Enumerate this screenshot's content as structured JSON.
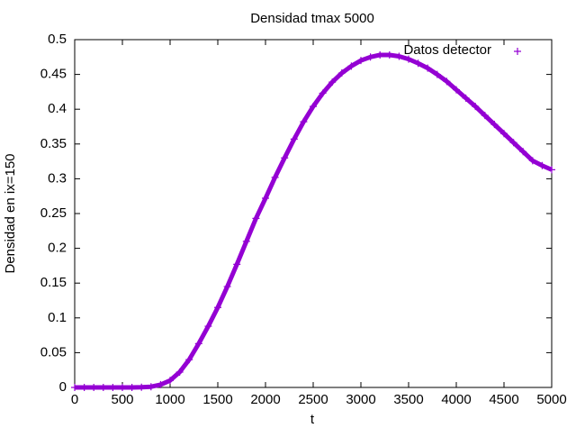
{
  "chart_data": {
    "type": "scatter",
    "title": "Densidad tmax 5000",
    "x_label": "t",
    "y_label": "Densidad en ix=150",
    "series": [
      {
        "name": "Datos detector",
        "color": "#9400d3",
        "x": [
          0,
          100,
          200,
          300,
          400,
          500,
          600,
          700,
          800,
          900,
          1000,
          1100,
          1200,
          1300,
          1400,
          1500,
          1600,
          1700,
          1800,
          1900,
          2000,
          2100,
          2200,
          2300,
          2400,
          2500,
          2600,
          2700,
          2800,
          2900,
          3000,
          3100,
          3200,
          3300,
          3400,
          3500,
          3600,
          3700,
          3800,
          3900,
          4000,
          4100,
          4200,
          4300,
          4400,
          4500,
          4600,
          4700,
          4800,
          4900,
          5000
        ],
        "values": [
          0,
          0,
          0,
          0,
          0,
          0,
          0,
          0.0003,
          0.001,
          0.004,
          0.01,
          0.022,
          0.04,
          0.063,
          0.088,
          0.115,
          0.145,
          0.177,
          0.21,
          0.243,
          0.272,
          0.302,
          0.33,
          0.357,
          0.382,
          0.404,
          0.423,
          0.439,
          0.452,
          0.462,
          0.47,
          0.475,
          0.478,
          0.478,
          0.476,
          0.472,
          0.466,
          0.459,
          0.45,
          0.44,
          0.428,
          0.416,
          0.404,
          0.391,
          0.378,
          0.365,
          0.352,
          0.339,
          0.326,
          0.319,
          0.313
        ]
      }
    ],
    "xlim": [
      0,
      5000
    ],
    "xticks": [
      0,
      500,
      1000,
      1500,
      2000,
      2500,
      3000,
      3500,
      4000,
      4500,
      5000
    ],
    "ylim": [
      0,
      0.5
    ],
    "yticks": [
      0,
      0.05,
      0.1,
      0.15,
      0.2,
      0.25,
      0.3,
      0.35,
      0.4,
      0.45,
      0.5
    ],
    "legend": "top-right"
  }
}
